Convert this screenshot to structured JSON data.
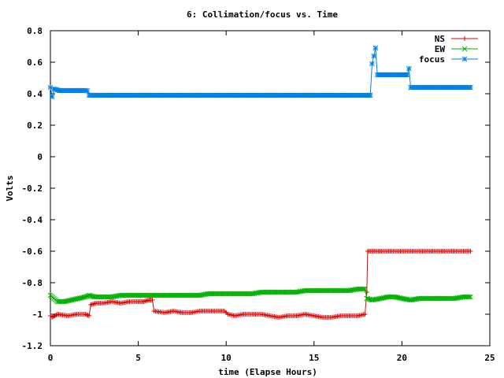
{
  "chart_data": {
    "type": "line",
    "title": "6: Collimation/focus vs. Time",
    "xlabel": "time (Elapse Hours)",
    "ylabel": "Volts",
    "xlim": [
      0,
      25
    ],
    "ylim": [
      -1.2,
      0.8
    ],
    "xticks": [
      "0",
      "5",
      "10",
      "15",
      "20",
      "25"
    ],
    "yticks": [
      "0.8",
      "0.6",
      "0.4",
      "0.2",
      "0",
      "-0.2",
      "-0.4",
      "-0.6",
      "-0.8",
      "-1",
      "-1.2"
    ],
    "xtick_values": [
      0,
      5,
      10,
      15,
      20,
      25
    ],
    "ytick_values": [
      0.8,
      0.6,
      0.4,
      0.2,
      0,
      -0.2,
      -0.4,
      -0.6,
      -0.8,
      -1,
      -1.2
    ],
    "legend_position": "top-right",
    "grid": false,
    "series": [
      {
        "name": "NS",
        "color": "#e00000",
        "marker": "plus",
        "points": [
          [
            0,
            -1.01
          ],
          [
            0.1,
            -1.02
          ],
          [
            0.4,
            -1.0
          ],
          [
            1.0,
            -1.01
          ],
          [
            1.5,
            -1.0
          ],
          [
            2.0,
            -1.0
          ],
          [
            2.2,
            -1.01
          ],
          [
            2.3,
            -0.94
          ],
          [
            2.6,
            -0.93
          ],
          [
            3.0,
            -0.93
          ],
          [
            3.5,
            -0.92
          ],
          [
            4.0,
            -0.93
          ],
          [
            4.5,
            -0.92
          ],
          [
            5.0,
            -0.92
          ],
          [
            5.3,
            -0.92
          ],
          [
            5.6,
            -0.91
          ],
          [
            5.8,
            -0.91
          ],
          [
            5.9,
            -0.98
          ],
          [
            6.5,
            -0.99
          ],
          [
            7.0,
            -0.98
          ],
          [
            7.5,
            -0.99
          ],
          [
            8.0,
            -0.99
          ],
          [
            8.5,
            -0.98
          ],
          [
            9.0,
            -0.98
          ],
          [
            9.5,
            -0.98
          ],
          [
            9.9,
            -0.98
          ],
          [
            10.1,
            -1.0
          ],
          [
            10.5,
            -1.01
          ],
          [
            11.0,
            -1.0
          ],
          [
            11.5,
            -1.0
          ],
          [
            12.0,
            -1.0
          ],
          [
            12.5,
            -1.01
          ],
          [
            13.0,
            -1.02
          ],
          [
            13.5,
            -1.01
          ],
          [
            14.0,
            -1.01
          ],
          [
            14.5,
            -1.0
          ],
          [
            15.0,
            -1.01
          ],
          [
            15.5,
            -1.02
          ],
          [
            16.0,
            -1.02
          ],
          [
            16.5,
            -1.01
          ],
          [
            17.0,
            -1.01
          ],
          [
            17.5,
            -1.01
          ],
          [
            17.9,
            -1.0
          ],
          [
            18.0,
            -0.86
          ],
          [
            18.05,
            -0.6
          ],
          [
            18.5,
            -0.6
          ],
          [
            19.0,
            -0.6
          ],
          [
            19.5,
            -0.6
          ],
          [
            20.0,
            -0.6
          ],
          [
            20.5,
            -0.6
          ],
          [
            21.0,
            -0.6
          ],
          [
            21.5,
            -0.6
          ],
          [
            22.0,
            -0.6
          ],
          [
            22.5,
            -0.6
          ],
          [
            23.0,
            -0.6
          ],
          [
            23.5,
            -0.6
          ],
          [
            23.9,
            -0.6
          ]
        ]
      },
      {
        "name": "EW",
        "color": "#00b000",
        "marker": "cross",
        "points": [
          [
            0,
            -0.88
          ],
          [
            0.2,
            -0.9
          ],
          [
            0.4,
            -0.92
          ],
          [
            0.8,
            -0.92
          ],
          [
            1.2,
            -0.91
          ],
          [
            1.6,
            -0.9
          ],
          [
            2.0,
            -0.89
          ],
          [
            2.2,
            -0.88
          ],
          [
            2.5,
            -0.89
          ],
          [
            3.0,
            -0.89
          ],
          [
            3.5,
            -0.89
          ],
          [
            4.0,
            -0.88
          ],
          [
            4.5,
            -0.88
          ],
          [
            5.0,
            -0.88
          ],
          [
            5.5,
            -0.88
          ],
          [
            6.0,
            -0.88
          ],
          [
            6.5,
            -0.88
          ],
          [
            7.0,
            -0.88
          ],
          [
            7.5,
            -0.88
          ],
          [
            8.0,
            -0.88
          ],
          [
            8.5,
            -0.88
          ],
          [
            9.0,
            -0.87
          ],
          [
            9.5,
            -0.87
          ],
          [
            10.0,
            -0.87
          ],
          [
            10.5,
            -0.87
          ],
          [
            11.0,
            -0.87
          ],
          [
            11.5,
            -0.87
          ],
          [
            12.0,
            -0.86
          ],
          [
            12.5,
            -0.86
          ],
          [
            13.0,
            -0.86
          ],
          [
            13.5,
            -0.86
          ],
          [
            14.0,
            -0.86
          ],
          [
            14.5,
            -0.85
          ],
          [
            15.0,
            -0.85
          ],
          [
            15.5,
            -0.85
          ],
          [
            16.0,
            -0.85
          ],
          [
            16.5,
            -0.85
          ],
          [
            17.0,
            -0.85
          ],
          [
            17.5,
            -0.84
          ],
          [
            17.9,
            -0.84
          ],
          [
            18.0,
            -0.9
          ],
          [
            18.3,
            -0.91
          ],
          [
            18.8,
            -0.9
          ],
          [
            19.2,
            -0.89
          ],
          [
            19.6,
            -0.89
          ],
          [
            20.0,
            -0.9
          ],
          [
            20.5,
            -0.91
          ],
          [
            21.0,
            -0.9
          ],
          [
            21.5,
            -0.9
          ],
          [
            22.0,
            -0.9
          ],
          [
            22.5,
            -0.9
          ],
          [
            23.0,
            -0.9
          ],
          [
            23.5,
            -0.89
          ],
          [
            23.9,
            -0.89
          ]
        ]
      },
      {
        "name": "focus",
        "color": "#0080e0",
        "marker": "star",
        "points": [
          [
            0,
            0.44
          ],
          [
            0.1,
            0.38
          ],
          [
            0.2,
            0.43
          ],
          [
            0.5,
            0.42
          ],
          [
            1.0,
            0.42
          ],
          [
            1.5,
            0.42
          ],
          [
            2.0,
            0.42
          ],
          [
            2.1,
            0.42
          ],
          [
            2.2,
            0.39
          ],
          [
            3.0,
            0.39
          ],
          [
            4.0,
            0.39
          ],
          [
            5.0,
            0.39
          ],
          [
            6.0,
            0.39
          ],
          [
            7.0,
            0.39
          ],
          [
            8.0,
            0.39
          ],
          [
            9.0,
            0.39
          ],
          [
            10.0,
            0.39
          ],
          [
            11.0,
            0.39
          ],
          [
            12.0,
            0.39
          ],
          [
            13.0,
            0.39
          ],
          [
            14.0,
            0.39
          ],
          [
            15.0,
            0.39
          ],
          [
            16.0,
            0.39
          ],
          [
            17.0,
            0.39
          ],
          [
            17.9,
            0.39
          ],
          [
            18.2,
            0.39
          ],
          [
            18.3,
            0.59
          ],
          [
            18.5,
            0.69
          ],
          [
            18.6,
            0.52
          ],
          [
            19.0,
            0.52
          ],
          [
            19.5,
            0.52
          ],
          [
            20.0,
            0.52
          ],
          [
            20.3,
            0.52
          ],
          [
            20.4,
            0.56
          ],
          [
            20.5,
            0.44
          ],
          [
            21.0,
            0.44
          ],
          [
            21.5,
            0.44
          ],
          [
            22.0,
            0.44
          ],
          [
            22.5,
            0.44
          ],
          [
            23.0,
            0.44
          ],
          [
            23.5,
            0.44
          ],
          [
            23.9,
            0.44
          ]
        ]
      }
    ]
  }
}
